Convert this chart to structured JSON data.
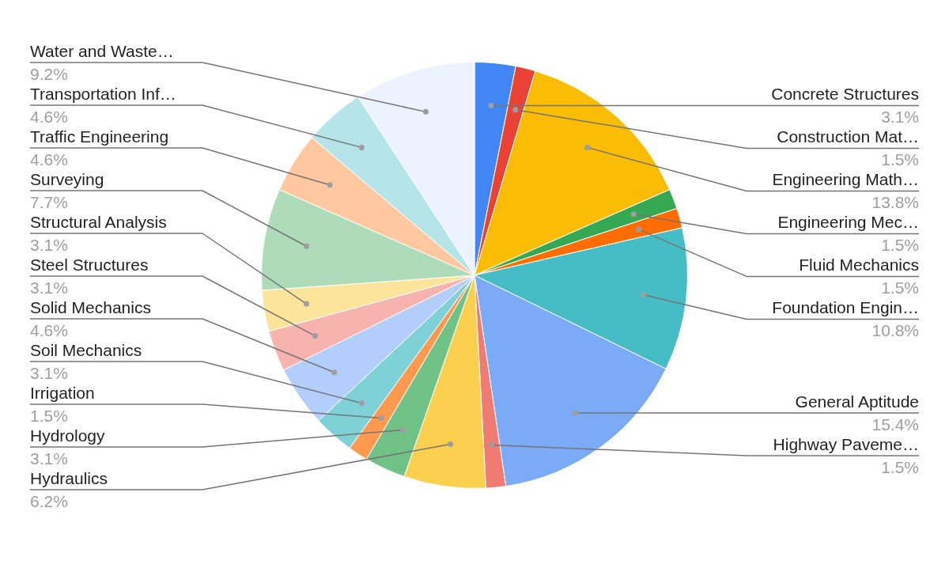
{
  "chart_data": {
    "type": "pie",
    "categories": [
      "Concrete Structures",
      "Construction Mat…",
      "Engineering Math…",
      "Engineering Mec…",
      "Fluid Mechanics",
      "Foundation Engin…",
      "General Aptitude",
      "Highway Paveme…",
      "Hydraulics",
      "Hydrology",
      "Irrigation",
      "Soil Mechanics",
      "Solid Mechanics",
      "Steel Structures",
      "Structural Analysis",
      "Surveying",
      "Traffic Engineering",
      "Transportation Inf…",
      "Water and Waste…"
    ],
    "values": [
      3.1,
      1.5,
      13.8,
      1.5,
      1.5,
      10.8,
      15.4,
      1.5,
      6.2,
      3.1,
      1.5,
      3.1,
      4.6,
      3.1,
      3.1,
      7.7,
      4.6,
      4.6,
      9.2
    ],
    "value_labels": [
      "3.1%",
      "1.5%",
      "13.8%",
      "1.5%",
      "1.5%",
      "10.8%",
      "15.4%",
      "1.5%",
      "6.2%",
      "3.1%",
      "1.5%",
      "3.1%",
      "4.6%",
      "3.1%",
      "3.1%",
      "7.7%",
      "4.6%",
      "4.6%",
      "9.2%"
    ],
    "colors": [
      "#4285f4",
      "#ea4335",
      "#fbbc04",
      "#34a853",
      "#ff6d01",
      "#46bdc6",
      "#7baaf7",
      "#f07b72",
      "#fcd04f",
      "#71c287",
      "#ff994d",
      "#7ed1d7",
      "#b3cefb",
      "#f7b4ae",
      "#fde49b",
      "#aedcba",
      "#ffc8a1",
      "#b5e5e8",
      "#ecf2fe"
    ]
  }
}
